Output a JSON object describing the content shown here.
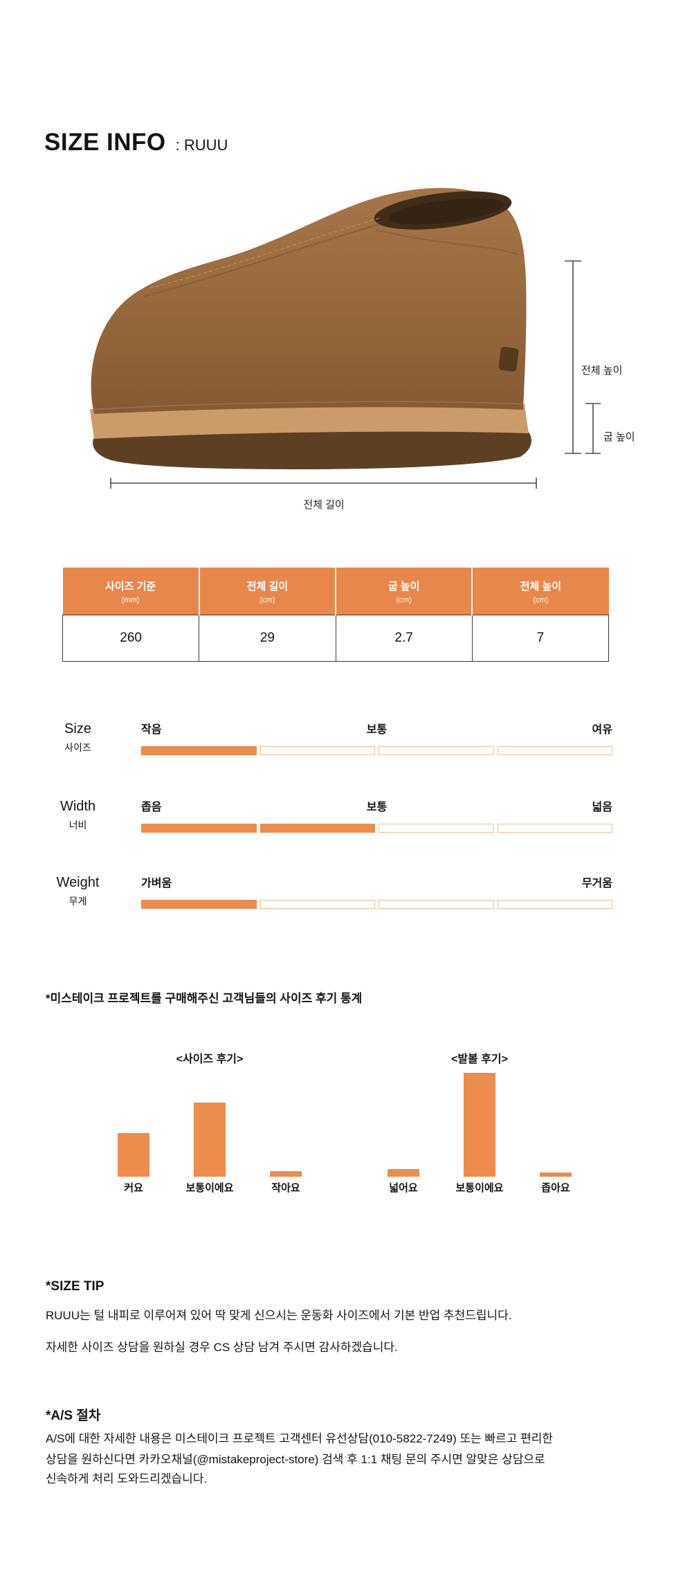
{
  "colors": {
    "accent": "#ED8C4C",
    "accent_border": "#F2BE97",
    "table_header": "#E8874B"
  },
  "header": {
    "title": "SIZE INFO",
    "subtitle": ": RUUU"
  },
  "figure": {
    "total_height_label": "전체 높이",
    "heel_height_label": "굽 높이",
    "total_length_label": "전체 길이"
  },
  "spec_table": {
    "columns": [
      {
        "label": "사이즈 기준",
        "unit": "(mm)"
      },
      {
        "label": "전체 길이",
        "unit": "(cm)"
      },
      {
        "label": "굽 높이",
        "unit": "(cm)"
      },
      {
        "label": "전체 높이",
        "unit": "(cm)"
      }
    ],
    "values": [
      "260",
      "29",
      "2.7",
      "7"
    ]
  },
  "gauges": [
    {
      "name_en": "Size",
      "name_ko": "사이즈",
      "left": "작음",
      "center": "보통",
      "right": "여유",
      "filled": 1,
      "total": 4
    },
    {
      "name_en": "Width",
      "name_ko": "너비",
      "left": "좁음",
      "center": "보통",
      "right": "넓음",
      "filled": 2,
      "total": 4
    },
    {
      "name_en": "Weight",
      "name_ko": "무게",
      "left": "가벼움",
      "center": "",
      "right": "무거움",
      "filled": 1,
      "total": 4
    }
  ],
  "review_stats": {
    "heading": "*미스테이크 프로젝트를 구매해주신 고객님들의 사이즈 후기 통계"
  },
  "chart_data": [
    {
      "type": "bar",
      "title": "<사이즈 후기>",
      "categories": [
        "커요",
        "보통이에요",
        "작아요"
      ],
      "values": [
        42,
        71,
        5
      ],
      "ylabel": "",
      "xlabel": "",
      "unit": "relative height, % of tallest bar",
      "grid": false
    },
    {
      "type": "bar",
      "title": "<발볼 후기>",
      "categories": [
        "넓어요",
        "보통이에요",
        "좁아요"
      ],
      "values": [
        7,
        100,
        4
      ],
      "ylabel": "",
      "xlabel": "",
      "unit": "relative height, % of tallest bar",
      "grid": false
    }
  ],
  "size_tip": {
    "heading": "*SIZE TIP",
    "lines": [
      "RUUU는 털 내피로 이루어져 있어 딱 맞게 신으시는 운동화 사이즈에서 기본 반업 추천드립니다.",
      "자세한 사이즈 상담을 원하실 경우 CS 상담 남겨 주시면 감사하겠습니다."
    ]
  },
  "as_section": {
    "heading": "*A/S 절차",
    "lines": [
      "A/S에 대한 자세한 내용은 미스테이크 프로젝트 고객센터 유선상담(010-5822-7249) 또는 빠르고 편리한",
      "상담을 원하신다면 카카오채널(@mistakeproject-store) 검색 후 1:1 채팅 문의 주시면 알맞은 상담으로",
      "신속하게 처리 도와드리겠습니다."
    ]
  }
}
